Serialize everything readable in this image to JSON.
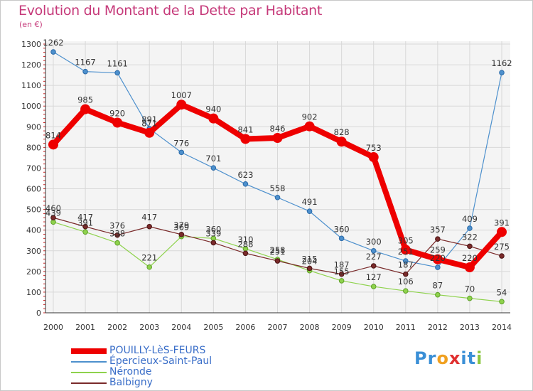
{
  "header": {
    "title": "Evolution du Montant de la Dette par Habitant",
    "subtitle": "(en €)"
  },
  "logo": {
    "text": "Proxiti",
    "letters": [
      "P",
      "r",
      "o",
      "x",
      "i",
      "t",
      "i"
    ],
    "colors": [
      "#3a8fd6",
      "#3a8fd6",
      "#f0a020",
      "#e03030",
      "#3a8fd6",
      "#3a8fd6",
      "#8cc63f"
    ]
  },
  "chart_data": {
    "type": "line",
    "categories": [
      "2000",
      "2001",
      "2002",
      "2003",
      "2004",
      "2005",
      "2006",
      "2007",
      "2008",
      "2009",
      "2010",
      "2011",
      "2012",
      "2013",
      "2014"
    ],
    "ylim": [
      0,
      1300
    ],
    "yticks": [
      "0",
      "100",
      "200",
      "300",
      "400",
      "500",
      "600",
      "700",
      "800",
      "900",
      "1000",
      "1100",
      "1200",
      "1300"
    ],
    "grid": true,
    "legend_placement": "bottom-left",
    "series": [
      {
        "name": "POUILLY-LèS-FEURS",
        "color": "#ee0000",
        "values": [
          814,
          985,
          920,
          871,
          1007,
          940,
          841,
          846,
          902,
          828,
          753,
          305,
          259,
          220,
          391
        ],
        "labels": [
          "814",
          "985",
          "920",
          "871",
          "1007",
          "940",
          "841",
          "846",
          "902",
          "828",
          "753",
          "305",
          "259",
          "220",
          "391"
        ]
      },
      {
        "name": "Épercieux-Saint-Paul",
        "color": "#4d90cd",
        "values": [
          1262,
          1167,
          1161,
          891,
          776,
          701,
          623,
          558,
          491,
          360,
          300,
          251,
          220,
          409,
          1162
        ],
        "labels": [
          "1262",
          "1167",
          "1161",
          "891",
          "776",
          "701",
          "623",
          "558",
          "491",
          "360",
          "300",
          "251",
          "220",
          "409",
          "1162"
        ]
      },
      {
        "name": "Néronde",
        "color": "#8ed24c",
        "values": [
          439,
          391,
          338,
          221,
          369,
          360,
          310,
          258,
          204,
          155,
          127,
          106,
          87,
          70,
          54
        ],
        "labels": [
          "439",
          "391",
          "338",
          "221",
          "369",
          "360",
          "310",
          "258",
          "204",
          "155",
          "127",
          "106",
          "87",
          "70",
          "54"
        ]
      },
      {
        "name": "Balbigny",
        "color": "#7a2a2a",
        "values": [
          460,
          417,
          376,
          417,
          379,
          339,
          288,
          251,
          215,
          187,
          227,
          187,
          357,
          322,
          275
        ],
        "labels": [
          "460",
          "417",
          "376",
          "417",
          "379",
          "339",
          "288",
          "251",
          "215",
          "187",
          "227",
          "187",
          "357",
          "322",
          "275"
        ]
      }
    ]
  }
}
